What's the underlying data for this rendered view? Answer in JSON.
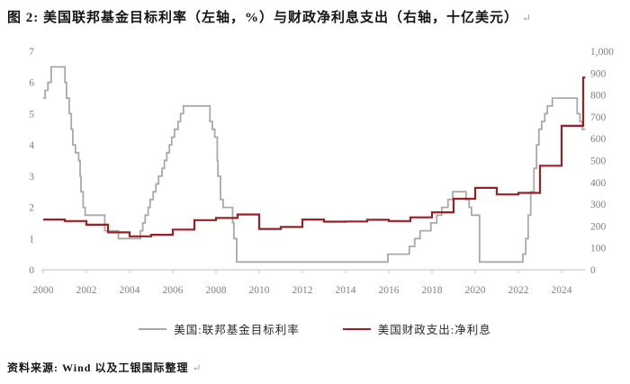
{
  "title": {
    "text": "图 2: 美国联邦基金目标利率（左轴，%）与财政净利息支出（右轴，十亿美元）",
    "return_mark": "↵"
  },
  "source": {
    "text": "资料来源: Wind 以及工银国际整理",
    "return_mark": "↵"
  },
  "colors": {
    "rate_line": "#a9a9a9",
    "interest_line": "#9e1f23",
    "axis": "#cdcdcd",
    "tick_label": "#7f7f7f",
    "title_text": "#141414",
    "legend_text": "#2a2a2a",
    "return_mark": "#9aa0a8"
  },
  "chart_data": {
    "type": "line",
    "title": "美国联邦基金目标利率（左轴，%）与财政净利息支出（右轴，十亿美元）",
    "grid": false,
    "legend_position": "bottom",
    "x_ticks": [
      2000,
      2002,
      2004,
      2006,
      2008,
      2010,
      2012,
      2014,
      2016,
      2018,
      2020,
      2022,
      2024
    ],
    "x_range": [
      2000,
      2025.1
    ],
    "left_axis": {
      "unit": "%",
      "min": 0,
      "max": 7,
      "step": 1,
      "labels": [
        "0",
        "1",
        "2",
        "3",
        "4",
        "5",
        "6",
        "7"
      ]
    },
    "right_axis": {
      "unit": "十亿美元",
      "min": 0,
      "max": 1000,
      "step": 100,
      "labels": [
        "0",
        "100",
        "200",
        "300",
        "400",
        "500",
        "600",
        "700",
        "800",
        "900",
        "1,000"
      ]
    },
    "series": [
      {
        "name": "美国:联邦基金目标利率",
        "axis": "left",
        "color": "#a9a9a9",
        "width": 1.8,
        "style": "step",
        "points": [
          [
            2000.0,
            5.5
          ],
          [
            2000.09,
            5.75
          ],
          [
            2000.22,
            6.0
          ],
          [
            2000.37,
            6.5
          ],
          [
            2001.01,
            6.0
          ],
          [
            2001.08,
            5.5
          ],
          [
            2001.21,
            5.0
          ],
          [
            2001.3,
            4.5
          ],
          [
            2001.37,
            4.0
          ],
          [
            2001.49,
            3.75
          ],
          [
            2001.64,
            3.5
          ],
          [
            2001.71,
            3.0
          ],
          [
            2001.75,
            2.5
          ],
          [
            2001.85,
            2.0
          ],
          [
            2001.94,
            1.75
          ],
          [
            2002.85,
            1.25
          ],
          [
            2003.48,
            1.0
          ],
          [
            2004.5,
            1.25
          ],
          [
            2004.61,
            1.5
          ],
          [
            2004.72,
            1.75
          ],
          [
            2004.86,
            2.0
          ],
          [
            2004.95,
            2.25
          ],
          [
            2005.09,
            2.5
          ],
          [
            2005.22,
            2.75
          ],
          [
            2005.34,
            3.0
          ],
          [
            2005.5,
            3.25
          ],
          [
            2005.61,
            3.5
          ],
          [
            2005.72,
            3.75
          ],
          [
            2005.84,
            4.0
          ],
          [
            2005.95,
            4.25
          ],
          [
            2006.08,
            4.5
          ],
          [
            2006.24,
            4.75
          ],
          [
            2006.36,
            5.0
          ],
          [
            2006.49,
            5.25
          ],
          [
            2007.72,
            4.75
          ],
          [
            2007.83,
            4.5
          ],
          [
            2007.94,
            4.25
          ],
          [
            2008.06,
            3.5
          ],
          [
            2008.09,
            3.0
          ],
          [
            2008.21,
            2.25
          ],
          [
            2008.33,
            2.0
          ],
          [
            2008.77,
            1.5
          ],
          [
            2008.83,
            1.0
          ],
          [
            2008.96,
            0.25
          ],
          [
            2015.96,
            0.5
          ],
          [
            2016.95,
            0.75
          ],
          [
            2017.2,
            1.0
          ],
          [
            2017.45,
            1.25
          ],
          [
            2017.95,
            1.5
          ],
          [
            2018.22,
            1.75
          ],
          [
            2018.45,
            2.0
          ],
          [
            2018.74,
            2.25
          ],
          [
            2018.96,
            2.5
          ],
          [
            2019.58,
            2.25
          ],
          [
            2019.72,
            2.0
          ],
          [
            2019.83,
            1.75
          ],
          [
            2020.2,
            0.25
          ],
          [
            2022.21,
            0.5
          ],
          [
            2022.34,
            1.0
          ],
          [
            2022.45,
            1.75
          ],
          [
            2022.57,
            2.5
          ],
          [
            2022.72,
            3.25
          ],
          [
            2022.84,
            4.0
          ],
          [
            2022.95,
            4.5
          ],
          [
            2023.08,
            4.75
          ],
          [
            2023.22,
            5.0
          ],
          [
            2023.34,
            5.25
          ],
          [
            2023.57,
            5.5
          ],
          [
            2024.72,
            5.0
          ],
          [
            2024.85,
            4.75
          ],
          [
            2024.96,
            4.5
          ]
        ]
      },
      {
        "name": "美国财政支出:净利息",
        "axis": "right",
        "color": "#9e1f23",
        "width": 2.2,
        "style": "step",
        "points": [
          [
            2000,
            230
          ],
          [
            2001,
            223
          ],
          [
            2002,
            206
          ],
          [
            2003,
            171
          ],
          [
            2004,
            153
          ],
          [
            2005,
            160
          ],
          [
            2006,
            184
          ],
          [
            2007,
            227
          ],
          [
            2008,
            237
          ],
          [
            2009,
            253
          ],
          [
            2010,
            187
          ],
          [
            2011,
            196
          ],
          [
            2012,
            230
          ],
          [
            2013,
            220
          ],
          [
            2014,
            221
          ],
          [
            2015,
            229
          ],
          [
            2016,
            223
          ],
          [
            2017,
            240
          ],
          [
            2018,
            263
          ],
          [
            2019,
            325
          ],
          [
            2020,
            375
          ],
          [
            2021,
            345
          ],
          [
            2022,
            352
          ],
          [
            2023,
            476
          ],
          [
            2024,
            659
          ],
          [
            2025,
            880
          ]
        ]
      }
    ]
  }
}
